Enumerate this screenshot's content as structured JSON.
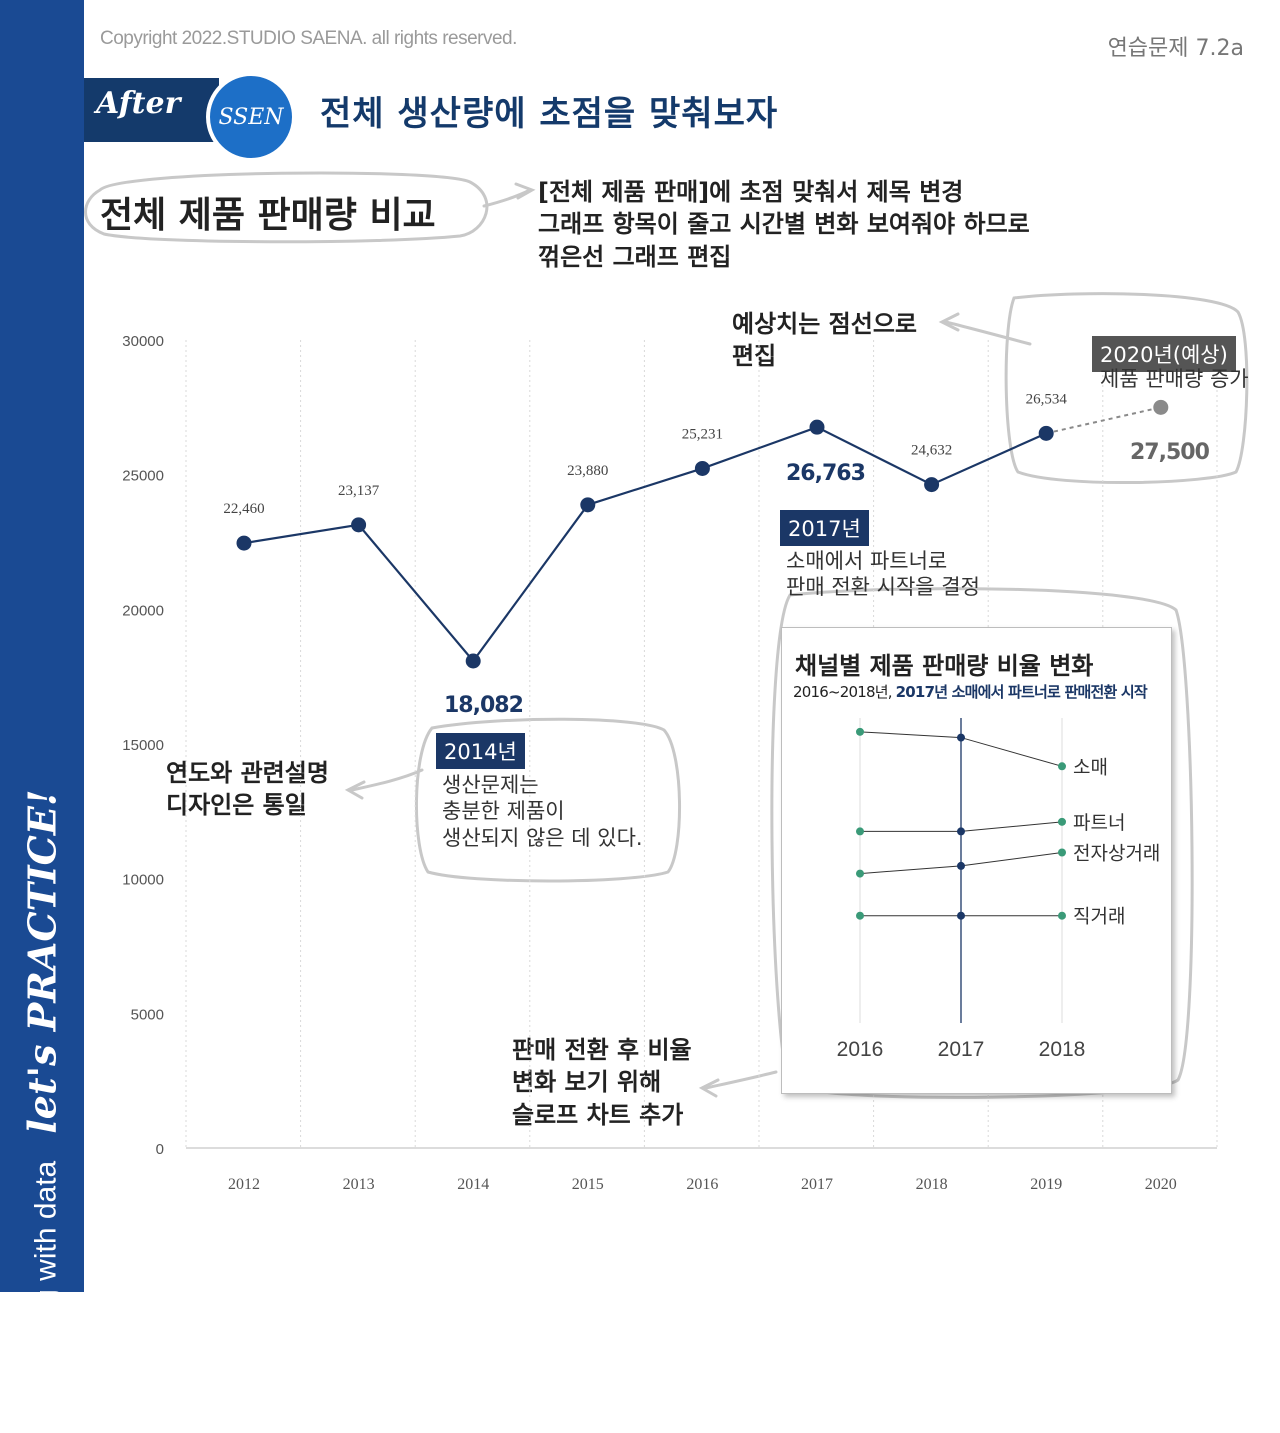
{
  "header": {
    "copyright": "Copyright 2022.STUDIO SAENA. all rights reserved.",
    "exercise_number": "연습문제 7.2a",
    "after_label": "After",
    "ssen_label": "SSEN",
    "headline": "전체 생산량에 초점을 맞춰보자"
  },
  "sidebar": {
    "lets_practice": "let's PRACTICE!",
    "storytelling_with_data": "storytelling with data"
  },
  "colors": {
    "navy": "#1b3766",
    "blue": "#1a4a93",
    "green": "#3a9a78",
    "grey_point": "#8a8a8a"
  },
  "chart_title": "전체 제품 판매량 비교",
  "notes": {
    "title_note": [
      "[전체 제품 판매]에 초점 맞춰서 제목 변경",
      "그래프 항목이 줄고 시간별 변화 보여줘야 하므로",
      "꺾은선 그래프 편집"
    ],
    "forecast_note": [
      "예상치는 점선으로",
      "편집"
    ],
    "design_note": [
      "연도와 관련설명",
      "디자인은 통일"
    ],
    "slope_note": [
      "판매 전환 후 비율",
      "변화 보기 위해",
      "슬로프 차트 추가"
    ]
  },
  "annotations": {
    "y2014": {
      "label": "2014년",
      "value": "18,082",
      "lines": [
        "생산문제는",
        "충분한 제품이",
        "생산되지 않은 데 있다."
      ]
    },
    "y2017": {
      "label": "2017년",
      "value": "26,763",
      "lines": [
        "소매에서 파트너로",
        "판매 전환 시작을 결정"
      ]
    },
    "y2020": {
      "label": "2020년(예상)",
      "value": "27,500",
      "lines": [
        "제품 판매량 증가"
      ]
    }
  },
  "chart_data": {
    "type": "line",
    "title": "전체 제품 판매량 비교",
    "categories": [
      "2012",
      "2013",
      "2014",
      "2015",
      "2016",
      "2017",
      "2018",
      "2019",
      "2020"
    ],
    "series": [
      {
        "name": "제품 판매량",
        "values": [
          22460,
          23137,
          18082,
          23880,
          25231,
          26763,
          24632,
          26534,
          null
        ]
      },
      {
        "name": "예상",
        "values": [
          null,
          null,
          null,
          null,
          null,
          null,
          null,
          26534,
          27500
        ],
        "style": "dashed"
      }
    ],
    "data_labels": [
      "22,460",
      "23,137",
      "",
      "23,880",
      "25,231",
      "",
      "24,632",
      "26,534",
      ""
    ],
    "yticks": [
      0,
      5000,
      10000,
      15000,
      20000,
      25000,
      30000
    ],
    "ylim": [
      0,
      30000
    ],
    "xlabel": "",
    "ylabel": "",
    "grid": "vertical dotted"
  },
  "inset": {
    "title": "채널별 제품 판매량 비율 변화",
    "subtitle_plain": "2016~2018년, ",
    "subtitle_bold": "2017년 소매에서 파트너로 판매전환 시작",
    "chart_data": {
      "type": "line",
      "categories": [
        "2016",
        "2017",
        "2018"
      ],
      "series": [
        {
          "name": "소매",
          "values": [
            15.2,
            14.9,
            13.4
          ]
        },
        {
          "name": "파트너",
          "values": [
            10,
            10,
            10.5
          ]
        },
        {
          "name": "전자상거래",
          "values": [
            7.8,
            8.2,
            8.9
          ]
        },
        {
          "name": "직거래",
          "values": [
            5.6,
            5.6,
            5.6
          ]
        }
      ],
      "ylim": [
        0,
        16.6
      ]
    }
  }
}
